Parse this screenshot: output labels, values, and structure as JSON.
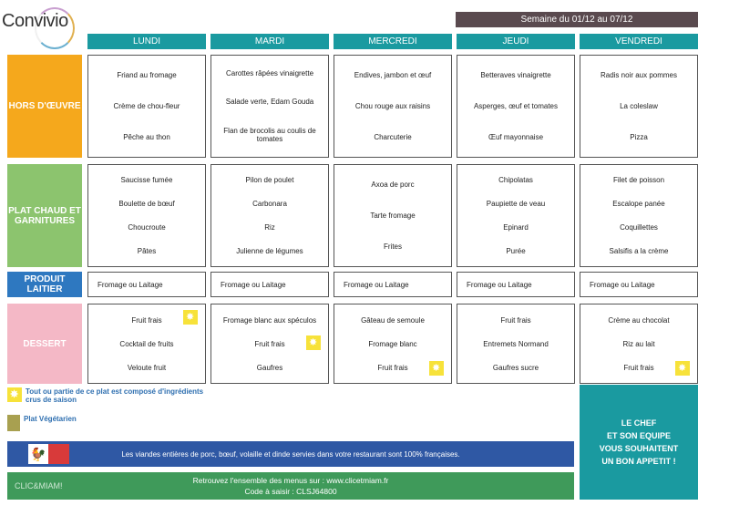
{
  "header": {
    "brand": "Convivio",
    "week": "Semaine du 01/12 au 07/12"
  },
  "days": [
    "LUNDI",
    "MARDI",
    "MERCREDI",
    "JEUDI",
    "VENDREDI"
  ],
  "rows": [
    {
      "label": "HORS D'ŒUVRE",
      "color": "#f5a81c",
      "cells": [
        [
          "Friand au fromage",
          "Crème de chou-fleur",
          "Pêche au thon"
        ],
        [
          "Carottes râpées vinaigrette",
          "Salade verte, Edam Gouda",
          "Flan de brocolis au coulis de tomates"
        ],
        [
          "Endives, jambon et œuf",
          "Chou rouge aux raisins",
          "Charcuterie"
        ],
        [
          "Betteraves vinaigrette",
          "Asperges, œuf et tomates",
          "Œuf mayonnaise"
        ],
        [
          "Radis noir aux pommes",
          "La coleslaw",
          "Pizza"
        ]
      ]
    },
    {
      "label": "PLAT CHAUD ET GARNITURES",
      "color": "#8cc46e",
      "cells": [
        [
          "Saucisse fumée",
          "Boulette de bœuf",
          "Choucroute",
          "Pâtes"
        ],
        [
          "Pilon de poulet",
          "Carbonara",
          "Riz",
          "Julienne de légumes"
        ],
        [
          "Axoa de porc",
          "Tarte fromage",
          "Frites"
        ],
        [
          "Chipolatas",
          "Paupiette de veau",
          "Epinard",
          "Purée"
        ],
        [
          "Filet de poisson",
          "Escalope panée",
          "Coquillettes",
          "Salsifis a la crème"
        ]
      ]
    },
    {
      "label": "PRODUIT LAITIER",
      "color": "#2e78c0",
      "cells": [
        [
          "Fromage ou Laitage"
        ],
        [
          "Fromage ou Laitage"
        ],
        [
          "Fromage ou Laitage"
        ],
        [
          "Fromage ou Laitage"
        ],
        [
          "Fromage ou Laitage"
        ]
      ]
    },
    {
      "label": "DESSERT",
      "color": "#f4b8c6",
      "cells": [
        [
          "Fruit frais",
          "Cocktail de fruits",
          "Veloute fruit"
        ],
        [
          "Fromage blanc aux spéculos",
          "Fruit frais",
          "Gaufres"
        ],
        [
          "Gâteau de semoule",
          "Fromage blanc",
          "Fruit frais"
        ],
        [
          "Fruit frais",
          "Entremets Normand",
          "Gaufres sucre"
        ],
        [
          "Crème au chocolat",
          "Riz au lait",
          "Fruit frais"
        ]
      ]
    }
  ],
  "legend": {
    "seasonal": "Tout ou partie de ce plat est composé d'ingrédients crus de saison",
    "vegetarian": "Plat Végétarien"
  },
  "bands": {
    "meat": "Les viandes entières de porc, bœuf, volaille et dinde servies dans votre restaurant sont 100% françaises.",
    "menus": "Retrouvez l'ensemble des menus sur : www.clicetmiam.fr",
    "code": "Code à saisir : CLSJ64800",
    "clic_logo": "CLIC&MIAM!"
  },
  "chef": "LE CHEF\nET SON EQUIPE\nVOUS SOUHAITENT\nUN BON APPETIT !"
}
